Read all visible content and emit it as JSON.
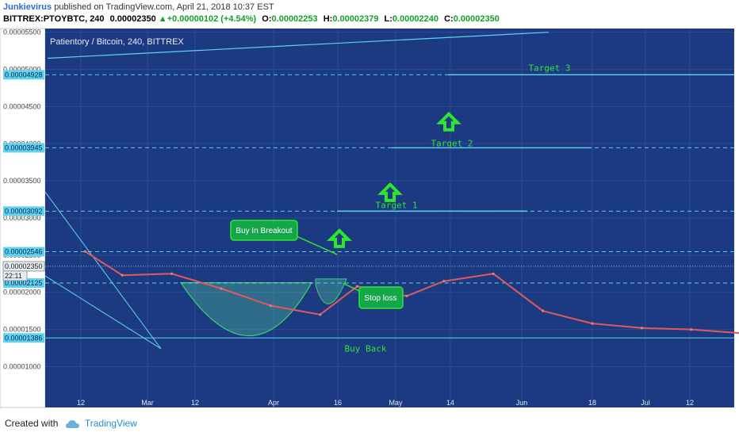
{
  "header": {
    "author": "Junkievirus",
    "published": " published on TradingView.com, April 21, 2018 10:37 EST",
    "symbol": "BITTREX:PTOYBTC, 240",
    "last": "0.00002350",
    "change": "+0.00000102 (+4.54%)",
    "o_label": "O:",
    "o": "0.00002253",
    "h_label": "H:",
    "h": "0.00002379",
    "l_label": "L:",
    "l": "0.00002240",
    "c_label": "C:",
    "c": "0.00002350"
  },
  "footer": {
    "created_with": "Created with",
    "brand": "TradingView"
  },
  "chart_data": {
    "type": "line",
    "title": "Patientory / Bitcoin, 240, BITTREX",
    "background": "#1c3a82",
    "price_color": "#e05a5a",
    "level_color": "#5fd3ee",
    "arrow_color": "#2ee62e",
    "y_ticks": [
      "0.00005500",
      "0.00005000",
      "0.00004500",
      "0.00004000",
      "0.00003500",
      "0.00003000",
      "0.00002500",
      "0.00002000",
      "0.00001500",
      "0.00001000"
    ],
    "x_ticks": [
      "12",
      "Mar",
      "12",
      "Apr",
      "16",
      "May",
      "14",
      "Jun",
      "18",
      "Jul",
      "12"
    ],
    "highlighted_levels": [
      {
        "label": "0.00004928",
        "value": 4.928e-05,
        "annotation": "Target 3"
      },
      {
        "label": "0.00003945",
        "value": 3.945e-05,
        "annotation": "Target 2"
      },
      {
        "label": "0.00003092",
        "value": 3.092e-05,
        "annotation": "Target 1"
      },
      {
        "label": "0.00002546",
        "value": 2.546e-05,
        "annotation": ""
      },
      {
        "label": "0.00002125",
        "value": 2.125e-05,
        "annotation": ""
      },
      {
        "label": "0.00001386",
        "value": 1.386e-05,
        "annotation": "Buy Back"
      }
    ],
    "current_price": {
      "label": "0.00002350",
      "value": 2.35e-05,
      "countdown": "22:11"
    },
    "callouts": {
      "buy": "Buy In Breakout",
      "stop": "Stop loss"
    },
    "price_series": [
      {
        "date": "2018-02-05",
        "close": 2.55e-05
      },
      {
        "date": "2018-02-08",
        "close": 2.23e-05
      },
      {
        "date": "2018-02-12",
        "close": 2.25e-05
      },
      {
        "date": "2018-02-16",
        "close": 2.05e-05
      },
      {
        "date": "2018-02-20",
        "close": 1.82e-05
      },
      {
        "date": "2018-02-24",
        "close": 1.7e-05
      },
      {
        "date": "2018-02-27",
        "close": 2.08e-05
      },
      {
        "date": "2018-03-03",
        "close": 1.95e-05
      },
      {
        "date": "2018-03-06",
        "close": 2.15e-05
      },
      {
        "date": "2018-03-10",
        "close": 2.25e-05
      },
      {
        "date": "2018-03-14",
        "close": 1.75e-05
      },
      {
        "date": "2018-03-18",
        "close": 1.58e-05
      },
      {
        "date": "2018-03-22",
        "close": 1.52e-05
      },
      {
        "date": "2018-03-26",
        "close": 1.5e-05
      },
      {
        "date": "2018-03-30",
        "close": 1.45e-05
      },
      {
        "date": "2018-04-03",
        "close": 1.48e-05
      },
      {
        "date": "2018-04-07",
        "close": 1.52e-05
      },
      {
        "date": "2018-04-10",
        "close": 1.62e-05
      },
      {
        "date": "2018-04-12",
        "close": 2.18e-05
      },
      {
        "date": "2018-04-15",
        "close": 2.05e-05
      },
      {
        "date": "2018-04-18",
        "close": 2.15e-05
      },
      {
        "date": "2018-04-20",
        "close": 2.45e-05
      },
      {
        "date": "2018-04-21",
        "close": 2.35e-05
      }
    ]
  }
}
